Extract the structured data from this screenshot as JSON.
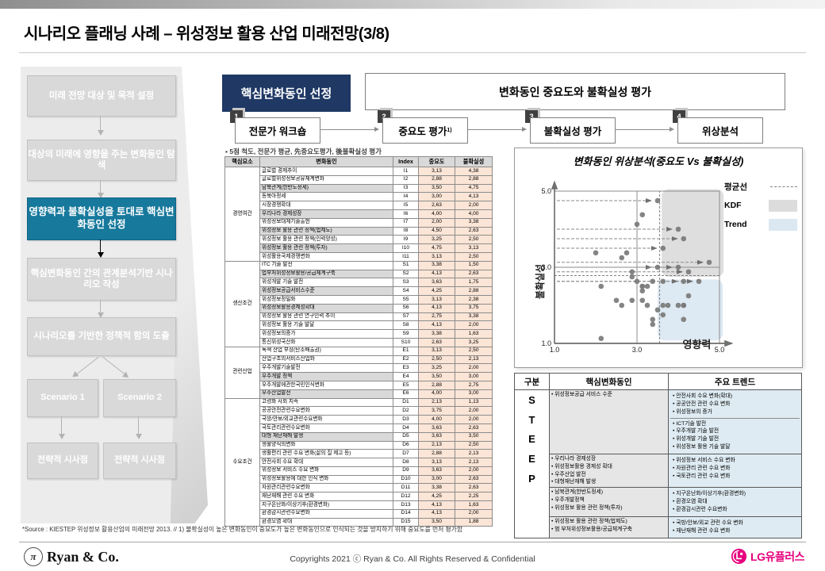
{
  "page": {
    "title": "시나리오 플래닝 사례 – 위성정보 활용 산업 미래전망(3/8)"
  },
  "sidebar": {
    "steps": [
      {
        "label": "미래 전망 대상 및 목적 설정",
        "active": false
      },
      {
        "label": "대상의 미래에 영향을 주는 변화동인 탐색",
        "active": false
      },
      {
        "label": "영향력과 불확실성을 토대로 핵심변화동인 선정",
        "active": true
      },
      {
        "label": "핵심변화동인 간의 관계분석기반 시나리오 작성",
        "active": false
      },
      {
        "label": "시나리오를 기반한 정책적 함의 도출",
        "active": false
      }
    ],
    "scenarios": [
      "Scenario 1",
      "Scenario 2"
    ],
    "implications": [
      "전략적 시사점",
      "전략적 시사점"
    ]
  },
  "process": {
    "header_left": "핵심변화동인 선정",
    "header_right": "변화동인 중요도와 불확실성 평가",
    "steps": [
      {
        "num": "1",
        "label": "전문가 워크숍",
        "sup": ""
      },
      {
        "num": "2",
        "label": "중요도 평가",
        "sup": "1)"
      },
      {
        "num": "3",
        "label": "불확실성 평가",
        "sup": ""
      },
      {
        "num": "4",
        "label": "위상분석",
        "sup": ""
      }
    ],
    "note": "▪ 5점 척도, 전문가 평균, 先중요도평가, 後불확실성 평가"
  },
  "driver_table": {
    "headers": [
      "핵심요소",
      "변화동인",
      "Index",
      "중요도",
      "불확실성"
    ],
    "groups": [
      {
        "name": "경영여건",
        "rows": [
          {
            "driver": "글로벌 경제추이",
            "index": "I1",
            "importance": "3,13",
            "uncertainty": "4,38",
            "key": false
          },
          {
            "driver": "글로벌위성정보공유체계변화",
            "index": "I2",
            "importance": "2,88",
            "uncertainty": "2,88",
            "key": false
          },
          {
            "driver": "남북관계(한반도정세)",
            "index": "I3",
            "importance": "3,50",
            "uncertainty": "4,75",
            "key": true
          },
          {
            "driver": "동북아정세",
            "index": "I4",
            "importance": "3,00",
            "uncertainty": "4,13",
            "key": false
          },
          {
            "driver": "시장경쟁확대",
            "index": "I5",
            "importance": "2,63",
            "uncertainty": "2,00",
            "key": false
          },
          {
            "driver": "우리나라 경제성장",
            "index": "I6",
            "importance": "4,00",
            "uncertainty": "4,00",
            "key": true
          },
          {
            "driver": "위성정보대체기술출현",
            "index": "I7",
            "importance": "2,00",
            "uncertainty": "3,38",
            "key": false
          },
          {
            "driver": "위성정보 활용 관련 정책(법제도)",
            "index": "I8",
            "importance": "4,50",
            "uncertainty": "2,63",
            "key": true
          },
          {
            "driver": "위성정보 활용 관련 정책(인력양성)",
            "index": "I9",
            "importance": "3,25",
            "uncertainty": "2,50",
            "key": false
          },
          {
            "driver": "위성정보 활용 관련 정책(투자)",
            "index": "I10",
            "importance": "4,75",
            "uncertainty": "3,13",
            "key": true
          },
          {
            "driver": "위성활용국제경쟁변화",
            "index": "I11",
            "importance": "3,13",
            "uncertainty": "2,50",
            "key": false
          }
        ]
      },
      {
        "name": "생산조건",
        "rows": [
          {
            "driver": "ITC 기술 발전",
            "index": "S1",
            "importance": "3,38",
            "uncertainty": "1,50",
            "key": false
          },
          {
            "driver": "법부처위성정보활용/공급체계구축",
            "index": "S2",
            "importance": "4,13",
            "uncertainty": "2,63",
            "key": true
          },
          {
            "driver": "위성개발 기술 발전",
            "index": "S3",
            "importance": "3,63",
            "uncertainty": "1,75",
            "key": false
          },
          {
            "driver": "위성정보공급서비스수준",
            "index": "S4",
            "importance": "4,25",
            "uncertainty": "2,88",
            "key": true
          },
          {
            "driver": "위성정보정밀화",
            "index": "S5",
            "importance": "3,13",
            "uncertainty": "2,38",
            "key": false
          },
          {
            "driver": "위성정보활용경제성확대",
            "index": "S6",
            "importance": "4,13",
            "uncertainty": "3,75",
            "key": true
          },
          {
            "driver": "위성정보 활용 관련 연구인력 추이",
            "index": "S7",
            "importance": "2,75",
            "uncertainty": "3,38",
            "key": false
          },
          {
            "driver": "위성정보 활용 기술 발달",
            "index": "S8",
            "importance": "4,13",
            "uncertainty": "2,00",
            "key": false
          },
          {
            "driver": "위성정보의증가",
            "index": "S9",
            "importance": "3,38",
            "uncertainty": "1,63",
            "key": false
          },
          {
            "driver": "통신위성국산화",
            "index": "S10",
            "importance": "2,63",
            "uncertainty": "3,25",
            "key": false
          }
        ]
      },
      {
        "name": "관련산업",
        "rows": [
          {
            "driver": "녹색 산업 부상(탄소배출권)",
            "index": "E1",
            "importance": "3,13",
            "uncertainty": "2,50",
            "key": false
          },
          {
            "driver": "산업구조의서비스산업화",
            "index": "E2",
            "importance": "2,50",
            "uncertainty": "2,13",
            "key": false
          },
          {
            "driver": "우주개발기술발전",
            "index": "E3",
            "importance": "3,25",
            "uncertainty": "2,00",
            "key": false
          },
          {
            "driver": "우주개발 정책",
            "index": "E4",
            "importance": "3,50",
            "uncertainty": "3,00",
            "key": true
          },
          {
            "driver": "우주개발에관한국민인식변화",
            "index": "E5",
            "importance": "2,88",
            "uncertainty": "2,75",
            "key": false
          },
          {
            "driver": "우주산업발전",
            "index": "E6",
            "importance": "4,00",
            "uncertainty": "3,00",
            "key": true
          }
        ]
      },
      {
        "name": "수요조건",
        "rows": [
          {
            "driver": "고령화 사회 지속",
            "index": "D1",
            "importance": "2,13",
            "uncertainty": "1,13",
            "key": false
          },
          {
            "driver": "공공안전관련수요변화",
            "index": "D2",
            "importance": "3,75",
            "uncertainty": "2,00",
            "key": false
          },
          {
            "driver": "국방/안보/외교관련수요변화",
            "index": "D3",
            "importance": "4,00",
            "uncertainty": "2,00",
            "key": false
          },
          {
            "driver": "국토관리관련수요변화",
            "index": "D4",
            "importance": "3,63",
            "uncertainty": "2,63",
            "key": false
          },
          {
            "driver": "대형 재난재해 발생",
            "index": "D5",
            "importance": "3,63",
            "uncertainty": "3,50",
            "key": true
          },
          {
            "driver": "생활양식의변화",
            "index": "D6",
            "importance": "2,13",
            "uncertainty": "2,50",
            "key": false
          },
          {
            "driver": "생활편리 관련 수요 변화(삶의 질 제고 등)",
            "index": "D7",
            "importance": "2,88",
            "uncertainty": "2,13",
            "key": false
          },
          {
            "driver": "안전사회 수요 확대",
            "index": "D8",
            "importance": "3,13",
            "uncertainty": "2,13",
            "key": false
          },
          {
            "driver": "위성정보 서비스 수요 변화",
            "index": "D9",
            "importance": "3,63",
            "uncertainty": "2,00",
            "key": false
          },
          {
            "driver": "위성정보활용에 대한 인식 변화",
            "index": "D10",
            "importance": "3,00",
            "uncertainty": "2,63",
            "key": false
          },
          {
            "driver": "자원관리관련수요변화",
            "index": "D11",
            "importance": "3,38",
            "uncertainty": "2,63",
            "key": false
          },
          {
            "driver": "재난재해 관련 수요 변화",
            "index": "D12",
            "importance": "4,25",
            "uncertainty": "2,25",
            "key": false
          },
          {
            "driver": "지구온난화/이상기후(환경변화)",
            "index": "D13",
            "importance": "4,13",
            "uncertainty": "1,63",
            "key": false
          },
          {
            "driver": "환경감시관련수요변화",
            "index": "D14",
            "importance": "4,13",
            "uncertainty": "2,00",
            "key": false
          },
          {
            "driver": "환경오염 확대",
            "index": "D15",
            "importance": "3,50",
            "uncertainty": "1,88",
            "key": false
          }
        ]
      }
    ]
  },
  "chart_data": {
    "type": "scatter",
    "title": "변화동인 위상분석(중요도 Vs 불확실성)",
    "xlabel": "영향력",
    "ylabel": "불확실성",
    "xlim": [
      1.0,
      5.0
    ],
    "ylim": [
      1.0,
      5.0
    ],
    "xticks": [
      1.0,
      3.0,
      5.0
    ],
    "yticks": [
      1.0,
      3.0,
      5.0
    ],
    "mean_x": 3.55,
    "mean_y": 2.78,
    "regions": {
      "kdf": {
        "x": [
          3.6,
          5.1
        ],
        "y": [
          2.75,
          5.05
        ],
        "color": "#dcdcdc"
      },
      "trend": {
        "x": [
          3.5,
          5.08
        ],
        "y": [
          1.08,
          2.68
        ],
        "color": "#dbe8f2"
      }
    },
    "legend": [
      {
        "label": "평균선",
        "swatch": "dash"
      },
      {
        "label": "KDF",
        "swatch": "gray"
      },
      {
        "label": "Trend",
        "swatch": "blue"
      }
    ],
    "point_color": "#7a7a7a",
    "points": [
      {
        "label": "I1",
        "x": 3.13,
        "y": 4.38,
        "key": false
      },
      {
        "label": "I2",
        "x": 2.88,
        "y": 2.88,
        "key": false
      },
      {
        "label": "I3",
        "x": 3.5,
        "y": 4.75,
        "key": true
      },
      {
        "label": "I4",
        "x": 3.0,
        "y": 4.13,
        "key": false
      },
      {
        "label": "I5",
        "x": 2.63,
        "y": 2.0,
        "key": false
      },
      {
        "label": "I6",
        "x": 4.0,
        "y": 4.0,
        "key": true
      },
      {
        "label": "I7",
        "x": 2.0,
        "y": 3.38,
        "key": false
      },
      {
        "label": "I8",
        "x": 4.5,
        "y": 2.63,
        "key": true
      },
      {
        "label": "I9",
        "x": 3.25,
        "y": 2.5,
        "key": false
      },
      {
        "label": "I10",
        "x": 4.75,
        "y": 3.13,
        "key": true
      },
      {
        "label": "I11",
        "x": 3.13,
        "y": 2.5,
        "key": false
      },
      {
        "label": "S1",
        "x": 3.38,
        "y": 1.5,
        "key": false
      },
      {
        "label": "S2",
        "x": 4.13,
        "y": 2.63,
        "key": true
      },
      {
        "label": "S3",
        "x": 3.63,
        "y": 1.75,
        "key": false
      },
      {
        "label": "S4",
        "x": 4.25,
        "y": 2.88,
        "key": true
      },
      {
        "label": "S5",
        "x": 3.13,
        "y": 2.38,
        "key": false
      },
      {
        "label": "S6",
        "x": 4.13,
        "y": 3.75,
        "key": true
      },
      {
        "label": "S7",
        "x": 2.75,
        "y": 3.38,
        "key": false
      },
      {
        "label": "S8",
        "x": 4.13,
        "y": 2.0,
        "key": false
      },
      {
        "label": "S9",
        "x": 3.38,
        "y": 1.63,
        "key": false
      },
      {
        "label": "S10",
        "x": 2.63,
        "y": 3.25,
        "key": false
      },
      {
        "label": "E1",
        "x": 3.13,
        "y": 2.5,
        "key": false
      },
      {
        "label": "E2",
        "x": 2.5,
        "y": 2.13,
        "key": false
      },
      {
        "label": "E3",
        "x": 3.25,
        "y": 2.0,
        "key": false
      },
      {
        "label": "E4",
        "x": 3.5,
        "y": 3.0,
        "key": true
      },
      {
        "label": "E5",
        "x": 2.88,
        "y": 2.75,
        "key": false
      },
      {
        "label": "E6",
        "x": 4.0,
        "y": 3.0,
        "key": true
      },
      {
        "label": "D1",
        "x": 2.13,
        "y": 1.13,
        "key": false
      },
      {
        "label": "D2",
        "x": 3.75,
        "y": 2.0,
        "key": false
      },
      {
        "label": "D3",
        "x": 4.0,
        "y": 2.0,
        "key": false
      },
      {
        "label": "D4",
        "x": 3.63,
        "y": 2.63,
        "key": false
      },
      {
        "label": "D5",
        "x": 3.63,
        "y": 3.5,
        "key": true
      },
      {
        "label": "D6",
        "x": 2.13,
        "y": 2.5,
        "key": false
      },
      {
        "label": "D7",
        "x": 2.88,
        "y": 2.13,
        "key": false
      },
      {
        "label": "D8",
        "x": 3.13,
        "y": 2.13,
        "key": false
      },
      {
        "label": "D9",
        "x": 3.63,
        "y": 2.0,
        "key": false
      },
      {
        "label": "D10",
        "x": 3.0,
        "y": 2.63,
        "key": false
      },
      {
        "label": "D11",
        "x": 3.38,
        "y": 2.63,
        "key": false
      },
      {
        "label": "D12",
        "x": 4.25,
        "y": 2.25,
        "key": false
      },
      {
        "label": "D13",
        "x": 4.13,
        "y": 1.63,
        "key": false
      },
      {
        "label": "D14",
        "x": 4.13,
        "y": 2.0,
        "key": false
      },
      {
        "label": "D15",
        "x": 3.5,
        "y": 1.88,
        "key": false
      }
    ]
  },
  "steep_table": {
    "headers": [
      "구분",
      "핵심변화동인",
      "주요 트렌드"
    ],
    "category_letters": [
      "S",
      "T",
      "E",
      "E",
      "P"
    ],
    "rows": [
      {
        "drivers": [
          "위성정보공급 서비스 수준"
        ],
        "trend_blocks": [
          [
            "안전사회 수요 변화(확대)",
            "공공안전 관련 수요 변화",
            "위성정보의 증가"
          ],
          [
            "ICT기술 발전",
            "우주개발 기술 발전",
            "위성개발 기술 발전",
            "위성정보 활용 기술 발달"
          ]
        ]
      },
      {
        "drivers": [
          "우리나라 경제성장",
          "위성정보활용 경제성 확대",
          "우주산업 발전",
          "대형재난재해 발생"
        ],
        "trend_blocks": [
          [
            "위성정보 서비스 수요 변화",
            "자원관리 관련 수요 변화",
            "국토관리 관련 수요 변화"
          ]
        ]
      },
      {
        "drivers": [
          "남북관계(한반도정세)",
          "우주개발정책",
          "위성정보 활용 관련 정책(투자)"
        ],
        "trend_blocks": [
          [
            "지구온난화/이상기후(환경변화)",
            "환경오염 확대",
            "환경감시관련 수요변화"
          ]
        ]
      },
      {
        "drivers": [
          "위성정보 활용 관련 정책(법제도)",
          "범 부처위성정보활용/공급체계구축"
        ],
        "trend_blocks": [
          [
            "국방/안보/외교 관련 수요 변화",
            "재난재해 관련 수요 변화"
          ]
        ]
      }
    ]
  },
  "footer": {
    "source": "*Source : KIESTEP 위성정보 활용산업의 미래전망 2013. // 1) 불확실성이 높은 변화동인이 중요도가 높은 변화동인으로 인식되는 것을 방지하기 위해 중요도를 먼저 평가함",
    "brand": "Ryan & Co.",
    "brand_symbol": "π",
    "copyright": "Copyrights 2021 ⓒ Ryan & Co. All Rights Reserved & Confidential",
    "partner_logo": "LG유플러스"
  },
  "colors": {
    "navy": "#1f3864",
    "teal_active": "#17799c",
    "peach_cell": "#fbe5d6",
    "kdf_region": "#dcdcdc",
    "trend_region": "#dbe8f2",
    "lg_magenta": "#e6007e"
  }
}
